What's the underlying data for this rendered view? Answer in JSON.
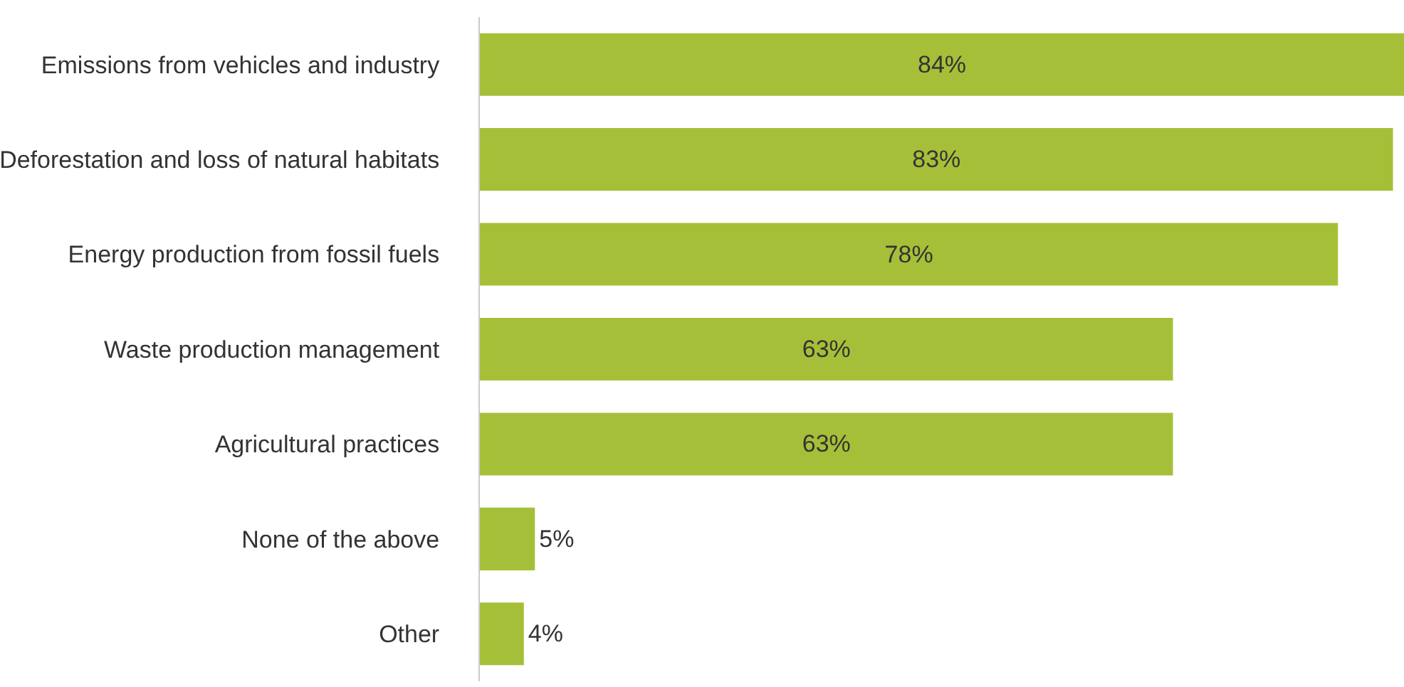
{
  "chart_data": {
    "type": "bar",
    "orientation": "horizontal",
    "categories": [
      "Emissions from vehicles and industry",
      "Deforestation and loss of natural habitats",
      "Energy production from fossil fuels",
      "Waste production management",
      "Agricultural practices",
      "None of the above",
      "Other"
    ],
    "values": [
      84,
      83,
      78,
      63,
      63,
      5,
      4
    ],
    "value_labels": [
      "84%",
      "83%",
      "78%",
      "63%",
      "63%",
      "5%",
      "4%"
    ],
    "color": "#a5c038",
    "xlim": [
      0,
      84
    ],
    "tick_labels": "y"
  }
}
